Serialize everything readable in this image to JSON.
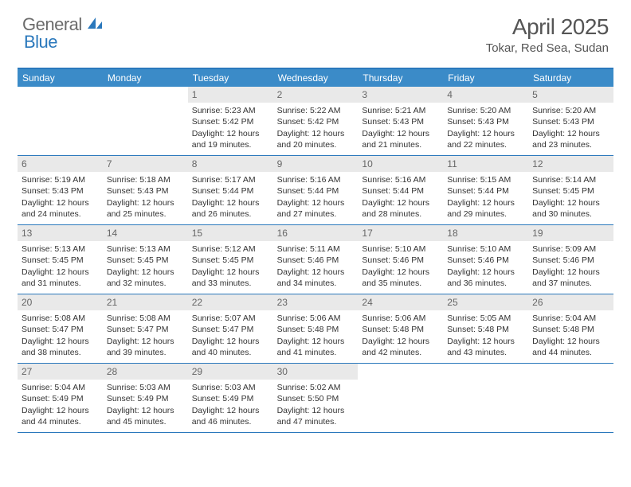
{
  "logo": {
    "part1": "General",
    "part2": "Blue"
  },
  "title": "April 2025",
  "location": "Tokar, Red Sea, Sudan",
  "weekdays": [
    "Sunday",
    "Monday",
    "Tuesday",
    "Wednesday",
    "Thursday",
    "Friday",
    "Saturday"
  ],
  "colors": {
    "header_bar": "#3b8bc8",
    "border": "#2a78bc",
    "daynum_bg": "#e9e9e9",
    "text": "#333333",
    "logo_gray": "#6b6b6b",
    "logo_blue": "#2a78bc"
  },
  "weeks": [
    [
      {
        "empty": true
      },
      {
        "empty": true
      },
      {
        "num": "1",
        "sunrise": "Sunrise: 5:23 AM",
        "sunset": "Sunset: 5:42 PM",
        "daylight": "Daylight: 12 hours and 19 minutes."
      },
      {
        "num": "2",
        "sunrise": "Sunrise: 5:22 AM",
        "sunset": "Sunset: 5:42 PM",
        "daylight": "Daylight: 12 hours and 20 minutes."
      },
      {
        "num": "3",
        "sunrise": "Sunrise: 5:21 AM",
        "sunset": "Sunset: 5:43 PM",
        "daylight": "Daylight: 12 hours and 21 minutes."
      },
      {
        "num": "4",
        "sunrise": "Sunrise: 5:20 AM",
        "sunset": "Sunset: 5:43 PM",
        "daylight": "Daylight: 12 hours and 22 minutes."
      },
      {
        "num": "5",
        "sunrise": "Sunrise: 5:20 AM",
        "sunset": "Sunset: 5:43 PM",
        "daylight": "Daylight: 12 hours and 23 minutes."
      }
    ],
    [
      {
        "num": "6",
        "sunrise": "Sunrise: 5:19 AM",
        "sunset": "Sunset: 5:43 PM",
        "daylight": "Daylight: 12 hours and 24 minutes."
      },
      {
        "num": "7",
        "sunrise": "Sunrise: 5:18 AM",
        "sunset": "Sunset: 5:43 PM",
        "daylight": "Daylight: 12 hours and 25 minutes."
      },
      {
        "num": "8",
        "sunrise": "Sunrise: 5:17 AM",
        "sunset": "Sunset: 5:44 PM",
        "daylight": "Daylight: 12 hours and 26 minutes."
      },
      {
        "num": "9",
        "sunrise": "Sunrise: 5:16 AM",
        "sunset": "Sunset: 5:44 PM",
        "daylight": "Daylight: 12 hours and 27 minutes."
      },
      {
        "num": "10",
        "sunrise": "Sunrise: 5:16 AM",
        "sunset": "Sunset: 5:44 PM",
        "daylight": "Daylight: 12 hours and 28 minutes."
      },
      {
        "num": "11",
        "sunrise": "Sunrise: 5:15 AM",
        "sunset": "Sunset: 5:44 PM",
        "daylight": "Daylight: 12 hours and 29 minutes."
      },
      {
        "num": "12",
        "sunrise": "Sunrise: 5:14 AM",
        "sunset": "Sunset: 5:45 PM",
        "daylight": "Daylight: 12 hours and 30 minutes."
      }
    ],
    [
      {
        "num": "13",
        "sunrise": "Sunrise: 5:13 AM",
        "sunset": "Sunset: 5:45 PM",
        "daylight": "Daylight: 12 hours and 31 minutes."
      },
      {
        "num": "14",
        "sunrise": "Sunrise: 5:13 AM",
        "sunset": "Sunset: 5:45 PM",
        "daylight": "Daylight: 12 hours and 32 minutes."
      },
      {
        "num": "15",
        "sunrise": "Sunrise: 5:12 AM",
        "sunset": "Sunset: 5:45 PM",
        "daylight": "Daylight: 12 hours and 33 minutes."
      },
      {
        "num": "16",
        "sunrise": "Sunrise: 5:11 AM",
        "sunset": "Sunset: 5:46 PM",
        "daylight": "Daylight: 12 hours and 34 minutes."
      },
      {
        "num": "17",
        "sunrise": "Sunrise: 5:10 AM",
        "sunset": "Sunset: 5:46 PM",
        "daylight": "Daylight: 12 hours and 35 minutes."
      },
      {
        "num": "18",
        "sunrise": "Sunrise: 5:10 AM",
        "sunset": "Sunset: 5:46 PM",
        "daylight": "Daylight: 12 hours and 36 minutes."
      },
      {
        "num": "19",
        "sunrise": "Sunrise: 5:09 AM",
        "sunset": "Sunset: 5:46 PM",
        "daylight": "Daylight: 12 hours and 37 minutes."
      }
    ],
    [
      {
        "num": "20",
        "sunrise": "Sunrise: 5:08 AM",
        "sunset": "Sunset: 5:47 PM",
        "daylight": "Daylight: 12 hours and 38 minutes."
      },
      {
        "num": "21",
        "sunrise": "Sunrise: 5:08 AM",
        "sunset": "Sunset: 5:47 PM",
        "daylight": "Daylight: 12 hours and 39 minutes."
      },
      {
        "num": "22",
        "sunrise": "Sunrise: 5:07 AM",
        "sunset": "Sunset: 5:47 PM",
        "daylight": "Daylight: 12 hours and 40 minutes."
      },
      {
        "num": "23",
        "sunrise": "Sunrise: 5:06 AM",
        "sunset": "Sunset: 5:48 PM",
        "daylight": "Daylight: 12 hours and 41 minutes."
      },
      {
        "num": "24",
        "sunrise": "Sunrise: 5:06 AM",
        "sunset": "Sunset: 5:48 PM",
        "daylight": "Daylight: 12 hours and 42 minutes."
      },
      {
        "num": "25",
        "sunrise": "Sunrise: 5:05 AM",
        "sunset": "Sunset: 5:48 PM",
        "daylight": "Daylight: 12 hours and 43 minutes."
      },
      {
        "num": "26",
        "sunrise": "Sunrise: 5:04 AM",
        "sunset": "Sunset: 5:48 PM",
        "daylight": "Daylight: 12 hours and 44 minutes."
      }
    ],
    [
      {
        "num": "27",
        "sunrise": "Sunrise: 5:04 AM",
        "sunset": "Sunset: 5:49 PM",
        "daylight": "Daylight: 12 hours and 44 minutes."
      },
      {
        "num": "28",
        "sunrise": "Sunrise: 5:03 AM",
        "sunset": "Sunset: 5:49 PM",
        "daylight": "Daylight: 12 hours and 45 minutes."
      },
      {
        "num": "29",
        "sunrise": "Sunrise: 5:03 AM",
        "sunset": "Sunset: 5:49 PM",
        "daylight": "Daylight: 12 hours and 46 minutes."
      },
      {
        "num": "30",
        "sunrise": "Sunrise: 5:02 AM",
        "sunset": "Sunset: 5:50 PM",
        "daylight": "Daylight: 12 hours and 47 minutes."
      },
      {
        "empty": true
      },
      {
        "empty": true
      },
      {
        "empty": true
      }
    ]
  ]
}
